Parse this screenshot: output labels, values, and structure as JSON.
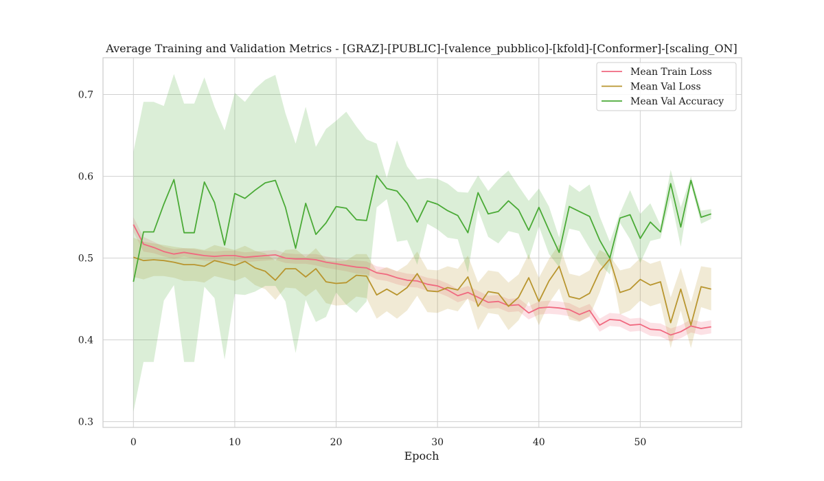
{
  "chart_data": {
    "type": "line",
    "title": "Average Training and Validation Metrics - [GRAZ]-[PUBLIC]-[valence_pubblico]-[kfold]-[Conformer]-[scaling_ON]",
    "xlabel": "Epoch",
    "ylabel": "",
    "xlim": [
      -3,
      60
    ],
    "ylim": [
      0.293,
      0.745
    ],
    "xticks": [
      0,
      10,
      20,
      30,
      40,
      50
    ],
    "yticks": [
      0.3,
      0.4,
      0.5,
      0.6,
      0.7
    ],
    "grid": true,
    "legend_position": "top-right",
    "x": [
      0,
      1,
      2,
      3,
      4,
      5,
      6,
      7,
      8,
      9,
      10,
      11,
      12,
      13,
      14,
      15,
      16,
      17,
      18,
      19,
      20,
      21,
      22,
      23,
      24,
      25,
      26,
      27,
      28,
      29,
      30,
      31,
      32,
      33,
      34,
      35,
      36,
      37,
      38,
      39,
      40,
      41,
      42,
      43,
      44,
      45,
      46,
      47,
      48,
      49,
      50,
      51,
      52,
      53,
      54,
      55,
      56,
      57
    ],
    "series": [
      {
        "name": "Mean Train Loss",
        "color": "#f0687f",
        "values": [
          0.541,
          0.517,
          0.513,
          0.508,
          0.505,
          0.507,
          0.505,
          0.503,
          0.502,
          0.503,
          0.503,
          0.501,
          0.502,
          0.503,
          0.504,
          0.5,
          0.499,
          0.499,
          0.498,
          0.495,
          0.493,
          0.491,
          0.489,
          0.488,
          0.482,
          0.48,
          0.476,
          0.473,
          0.472,
          0.468,
          0.466,
          0.461,
          0.454,
          0.458,
          0.452,
          0.446,
          0.447,
          0.442,
          0.443,
          0.433,
          0.439,
          0.44,
          0.439,
          0.437,
          0.431,
          0.436,
          0.418,
          0.425,
          0.424,
          0.418,
          0.419,
          0.413,
          0.412,
          0.406,
          0.41,
          0.417,
          0.414,
          0.416
        ],
        "band_upper": [
          0.55,
          0.526,
          0.52,
          0.514,
          0.511,
          0.512,
          0.511,
          0.509,
          0.508,
          0.509,
          0.509,
          0.507,
          0.508,
          0.509,
          0.51,
          0.506,
          0.505,
          0.505,
          0.505,
          0.502,
          0.5,
          0.498,
          0.497,
          0.496,
          0.49,
          0.488,
          0.484,
          0.481,
          0.48,
          0.476,
          0.474,
          0.469,
          0.462,
          0.466,
          0.46,
          0.454,
          0.455,
          0.45,
          0.451,
          0.441,
          0.447,
          0.448,
          0.447,
          0.445,
          0.439,
          0.444,
          0.426,
          0.433,
          0.432,
          0.426,
          0.427,
          0.421,
          0.42,
          0.414,
          0.418,
          0.425,
          0.422,
          0.424
        ],
        "band_lower": [
          0.532,
          0.508,
          0.506,
          0.502,
          0.499,
          0.502,
          0.499,
          0.497,
          0.496,
          0.497,
          0.497,
          0.495,
          0.496,
          0.497,
          0.498,
          0.494,
          0.493,
          0.493,
          0.491,
          0.488,
          0.486,
          0.484,
          0.481,
          0.48,
          0.474,
          0.472,
          0.468,
          0.465,
          0.464,
          0.46,
          0.458,
          0.453,
          0.446,
          0.45,
          0.444,
          0.438,
          0.439,
          0.434,
          0.435,
          0.425,
          0.431,
          0.432,
          0.431,
          0.429,
          0.423,
          0.428,
          0.41,
          0.417,
          0.416,
          0.41,
          0.411,
          0.405,
          0.404,
          0.398,
          0.402,
          0.409,
          0.406,
          0.408
        ]
      },
      {
        "name": "Mean Val Loss",
        "color": "#b8952e",
        "values": [
          0.501,
          0.497,
          0.498,
          0.497,
          0.495,
          0.492,
          0.492,
          0.49,
          0.497,
          0.494,
          0.491,
          0.496,
          0.488,
          0.484,
          0.473,
          0.487,
          0.487,
          0.477,
          0.487,
          0.471,
          0.469,
          0.47,
          0.479,
          0.478,
          0.455,
          0.462,
          0.455,
          0.464,
          0.481,
          0.46,
          0.459,
          0.464,
          0.461,
          0.477,
          0.441,
          0.459,
          0.457,
          0.441,
          0.452,
          0.476,
          0.447,
          0.472,
          0.49,
          0.453,
          0.45,
          0.457,
          0.484,
          0.499,
          0.458,
          0.462,
          0.474,
          0.467,
          0.471,
          0.421,
          0.462,
          0.418,
          0.465,
          0.462
        ],
        "band_upper": [
          0.525,
          0.52,
          0.518,
          0.516,
          0.514,
          0.512,
          0.512,
          0.51,
          0.516,
          0.513,
          0.51,
          0.515,
          0.509,
          0.506,
          0.497,
          0.51,
          0.511,
          0.501,
          0.512,
          0.497,
          0.496,
          0.497,
          0.505,
          0.505,
          0.484,
          0.489,
          0.484,
          0.492,
          0.508,
          0.486,
          0.485,
          0.49,
          0.487,
          0.503,
          0.47,
          0.485,
          0.483,
          0.47,
          0.48,
          0.505,
          0.476,
          0.499,
          0.517,
          0.481,
          0.478,
          0.485,
          0.51,
          0.503,
          0.485,
          0.488,
          0.5,
          0.493,
          0.497,
          0.452,
          0.488,
          0.446,
          0.49,
          0.488
        ],
        "band_lower": [
          0.477,
          0.474,
          0.478,
          0.478,
          0.476,
          0.472,
          0.472,
          0.47,
          0.478,
          0.475,
          0.472,
          0.477,
          0.467,
          0.462,
          0.449,
          0.464,
          0.463,
          0.453,
          0.462,
          0.445,
          0.442,
          0.443,
          0.453,
          0.451,
          0.426,
          0.435,
          0.426,
          0.436,
          0.454,
          0.434,
          0.433,
          0.438,
          0.435,
          0.451,
          0.412,
          0.433,
          0.431,
          0.412,
          0.424,
          0.447,
          0.418,
          0.445,
          0.463,
          0.425,
          0.422,
          0.429,
          0.458,
          0.495,
          0.431,
          0.436,
          0.448,
          0.441,
          0.445,
          0.39,
          0.436,
          0.39,
          0.44,
          0.436
        ]
      },
      {
        "name": "Mean Val Accuracy",
        "color": "#4aaa36",
        "values": [
          0.471,
          0.532,
          0.532,
          0.566,
          0.596,
          0.531,
          0.531,
          0.593,
          0.568,
          0.516,
          0.579,
          0.573,
          0.583,
          0.592,
          0.595,
          0.562,
          0.512,
          0.567,
          0.529,
          0.543,
          0.563,
          0.561,
          0.547,
          0.546,
          0.601,
          0.585,
          0.582,
          0.567,
          0.544,
          0.57,
          0.566,
          0.558,
          0.552,
          0.531,
          0.58,
          0.554,
          0.557,
          0.57,
          0.559,
          0.534,
          0.562,
          0.534,
          0.507,
          0.563,
          0.557,
          0.551,
          0.522,
          0.5,
          0.549,
          0.553,
          0.524,
          0.544,
          0.532,
          0.591,
          0.538,
          0.595,
          0.55,
          0.554
        ],
        "band_upper": [
          0.63,
          0.691,
          0.691,
          0.686,
          0.725,
          0.689,
          0.689,
          0.721,
          0.685,
          0.656,
          0.702,
          0.691,
          0.707,
          0.718,
          0.724,
          0.677,
          0.64,
          0.685,
          0.636,
          0.658,
          0.668,
          0.679,
          0.661,
          0.645,
          0.64,
          0.598,
          0.644,
          0.612,
          0.596,
          0.598,
          0.597,
          0.591,
          0.581,
          0.58,
          0.601,
          0.582,
          0.596,
          0.607,
          0.588,
          0.57,
          0.585,
          0.563,
          0.525,
          0.59,
          0.581,
          0.59,
          0.551,
          0.52,
          0.555,
          0.583,
          0.554,
          0.567,
          0.54,
          0.608,
          0.562,
          0.6,
          0.558,
          0.56
        ],
        "band_lower": [
          0.312,
          0.373,
          0.373,
          0.448,
          0.467,
          0.373,
          0.373,
          0.465,
          0.451,
          0.376,
          0.456,
          0.455,
          0.459,
          0.466,
          0.466,
          0.447,
          0.384,
          0.449,
          0.422,
          0.428,
          0.458,
          0.443,
          0.433,
          0.447,
          0.562,
          0.572,
          0.52,
          0.522,
          0.492,
          0.542,
          0.535,
          0.525,
          0.523,
          0.482,
          0.559,
          0.526,
          0.518,
          0.533,
          0.53,
          0.498,
          0.539,
          0.505,
          0.489,
          0.536,
          0.533,
          0.512,
          0.493,
          0.48,
          0.543,
          0.523,
          0.494,
          0.521,
          0.524,
          0.574,
          0.514,
          0.59,
          0.542,
          0.548
        ]
      }
    ]
  }
}
